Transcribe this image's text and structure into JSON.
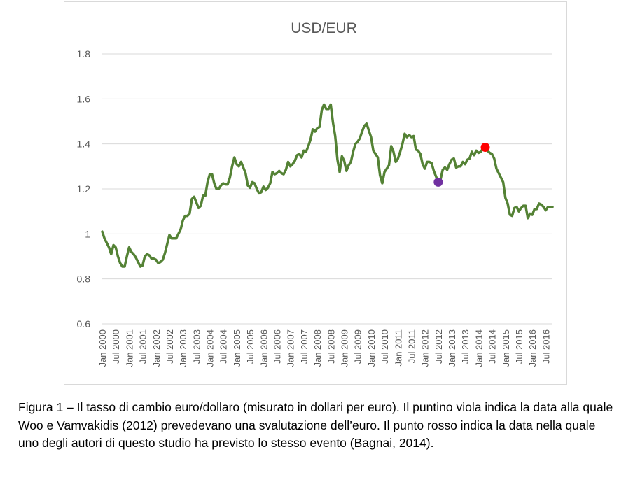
{
  "caption": "Figura 1 – Il tasso di cambio euro/dollaro (misurato in dollari per euro). Il puntino viola indica la data alla quale Woo e Vamvakidis (2012) prevedevano una svalutazione dell’euro. Il punto rosso indica la data nella quale uno degli autori di questo studio ha previsto lo stesso evento (Bagnai, 2014).",
  "chart_data": {
    "type": "line",
    "title": "USD/EUR",
    "xlabel": "",
    "ylabel": "",
    "ylim": [
      0.6,
      1.8
    ],
    "yticks": [
      0.6,
      0.8,
      1,
      1.2,
      1.4,
      1.6,
      1.8
    ],
    "ytick_labels": [
      "0.6",
      "0.8",
      "1",
      "1.2",
      "1.4",
      "1.6",
      "1.8"
    ],
    "grid": true,
    "x_start": "2000-01",
    "x_end": "2016-10",
    "xtick_labels": [
      "Jan 2000",
      "Jul 2000",
      "Jan 2001",
      "Jul 2001",
      "Jan 2002",
      "Jul 2002",
      "Jan 2003",
      "Jul 2003",
      "Jan 2004",
      "Jul 2004",
      "Jan 2005",
      "Jul 2005",
      "Jan 2006",
      "Jul 2006",
      "Jan 2007",
      "Jul 2007",
      "Jan 2008",
      "Jul 2008",
      "Jan 2009",
      "Jul 2009",
      "Jan 2010",
      "Jul 2010",
      "Jan 2011",
      "Jul 2011",
      "Jan 2012",
      "Jul 2012",
      "Jan 2013",
      "Jul 2013",
      "Jan 2014",
      "Jul 2014",
      "Jan 2015",
      "Jul 2015",
      "Jan 2016",
      "Jul 2016"
    ],
    "series": [
      {
        "name": "USD/EUR",
        "color": "#548235",
        "points": [
          [
            "2000-01",
            1.01
          ],
          [
            "2000-02",
            0.98
          ],
          [
            "2000-03",
            0.96
          ],
          [
            "2000-04",
            0.94
          ],
          [
            "2000-05",
            0.91
          ],
          [
            "2000-06",
            0.95
          ],
          [
            "2000-07",
            0.94
          ],
          [
            "2000-08",
            0.9
          ],
          [
            "2000-09",
            0.87
          ],
          [
            "2000-10",
            0.855
          ],
          [
            "2000-11",
            0.855
          ],
          [
            "2000-12",
            0.9
          ],
          [
            "2001-01",
            0.94
          ],
          [
            "2001-02",
            0.92
          ],
          [
            "2001-03",
            0.91
          ],
          [
            "2001-04",
            0.895
          ],
          [
            "2001-05",
            0.875
          ],
          [
            "2001-06",
            0.855
          ],
          [
            "2001-07",
            0.86
          ],
          [
            "2001-08",
            0.9
          ],
          [
            "2001-09",
            0.91
          ],
          [
            "2001-10",
            0.905
          ],
          [
            "2001-11",
            0.89
          ],
          [
            "2001-12",
            0.89
          ],
          [
            "2002-01",
            0.885
          ],
          [
            "2002-02",
            0.87
          ],
          [
            "2002-03",
            0.875
          ],
          [
            "2002-04",
            0.885
          ],
          [
            "2002-05",
            0.915
          ],
          [
            "2002-06",
            0.955
          ],
          [
            "2002-07",
            0.995
          ],
          [
            "2002-08",
            0.98
          ],
          [
            "2002-09",
            0.98
          ],
          [
            "2002-10",
            0.98
          ],
          [
            "2002-11",
            1.0
          ],
          [
            "2002-12",
            1.02
          ],
          [
            "2003-01",
            1.06
          ],
          [
            "2003-02",
            1.08
          ],
          [
            "2003-03",
            1.08
          ],
          [
            "2003-04",
            1.09
          ],
          [
            "2003-05",
            1.155
          ],
          [
            "2003-06",
            1.165
          ],
          [
            "2003-07",
            1.14
          ],
          [
            "2003-08",
            1.115
          ],
          [
            "2003-09",
            1.125
          ],
          [
            "2003-10",
            1.17
          ],
          [
            "2003-11",
            1.17
          ],
          [
            "2003-12",
            1.23
          ],
          [
            "2004-01",
            1.265
          ],
          [
            "2004-02",
            1.265
          ],
          [
            "2004-03",
            1.225
          ],
          [
            "2004-04",
            1.2
          ],
          [
            "2004-05",
            1.2
          ],
          [
            "2004-06",
            1.215
          ],
          [
            "2004-07",
            1.225
          ],
          [
            "2004-08",
            1.22
          ],
          [
            "2004-09",
            1.22
          ],
          [
            "2004-10",
            1.25
          ],
          [
            "2004-11",
            1.3
          ],
          [
            "2004-12",
            1.34
          ],
          [
            "2005-01",
            1.31
          ],
          [
            "2005-02",
            1.3
          ],
          [
            "2005-03",
            1.32
          ],
          [
            "2005-04",
            1.295
          ],
          [
            "2005-05",
            1.27
          ],
          [
            "2005-06",
            1.215
          ],
          [
            "2005-07",
            1.205
          ],
          [
            "2005-08",
            1.23
          ],
          [
            "2005-09",
            1.225
          ],
          [
            "2005-10",
            1.2
          ],
          [
            "2005-11",
            1.18
          ],
          [
            "2005-12",
            1.185
          ],
          [
            "2006-01",
            1.21
          ],
          [
            "2006-02",
            1.195
          ],
          [
            "2006-03",
            1.205
          ],
          [
            "2006-04",
            1.225
          ],
          [
            "2006-05",
            1.275
          ],
          [
            "2006-06",
            1.265
          ],
          [
            "2006-07",
            1.27
          ],
          [
            "2006-08",
            1.28
          ],
          [
            "2006-09",
            1.27
          ],
          [
            "2006-10",
            1.265
          ],
          [
            "2006-11",
            1.285
          ],
          [
            "2006-12",
            1.32
          ],
          [
            "2007-01",
            1.3
          ],
          [
            "2007-02",
            1.31
          ],
          [
            "2007-03",
            1.325
          ],
          [
            "2007-04",
            1.35
          ],
          [
            "2007-05",
            1.355
          ],
          [
            "2007-06",
            1.34
          ],
          [
            "2007-07",
            1.37
          ],
          [
            "2007-08",
            1.365
          ],
          [
            "2007-09",
            1.39
          ],
          [
            "2007-10",
            1.42
          ],
          [
            "2007-11",
            1.465
          ],
          [
            "2007-12",
            1.455
          ],
          [
            "2008-01",
            1.47
          ],
          [
            "2008-02",
            1.475
          ],
          [
            "2008-03",
            1.55
          ],
          [
            "2008-04",
            1.575
          ],
          [
            "2008-05",
            1.555
          ],
          [
            "2008-06",
            1.555
          ],
          [
            "2008-07",
            1.575
          ],
          [
            "2008-08",
            1.495
          ],
          [
            "2008-09",
            1.435
          ],
          [
            "2008-10",
            1.33
          ],
          [
            "2008-11",
            1.275
          ],
          [
            "2008-12",
            1.345
          ],
          [
            "2009-01",
            1.325
          ],
          [
            "2009-02",
            1.28
          ],
          [
            "2009-03",
            1.305
          ],
          [
            "2009-04",
            1.32
          ],
          [
            "2009-05",
            1.365
          ],
          [
            "2009-06",
            1.4
          ],
          [
            "2009-07",
            1.41
          ],
          [
            "2009-08",
            1.425
          ],
          [
            "2009-09",
            1.455
          ],
          [
            "2009-10",
            1.48
          ],
          [
            "2009-11",
            1.49
          ],
          [
            "2009-12",
            1.46
          ],
          [
            "2010-01",
            1.43
          ],
          [
            "2010-02",
            1.37
          ],
          [
            "2010-03",
            1.355
          ],
          [
            "2010-04",
            1.34
          ],
          [
            "2010-05",
            1.26
          ],
          [
            "2010-06",
            1.225
          ],
          [
            "2010-07",
            1.275
          ],
          [
            "2010-08",
            1.29
          ],
          [
            "2010-09",
            1.305
          ],
          [
            "2010-10",
            1.39
          ],
          [
            "2010-11",
            1.365
          ],
          [
            "2010-12",
            1.32
          ],
          [
            "2011-01",
            1.335
          ],
          [
            "2011-02",
            1.365
          ],
          [
            "2011-03",
            1.4
          ],
          [
            "2011-04",
            1.445
          ],
          [
            "2011-05",
            1.43
          ],
          [
            "2011-06",
            1.44
          ],
          [
            "2011-07",
            1.43
          ],
          [
            "2011-08",
            1.435
          ],
          [
            "2011-09",
            1.375
          ],
          [
            "2011-10",
            1.37
          ],
          [
            "2011-11",
            1.355
          ],
          [
            "2011-12",
            1.31
          ],
          [
            "2012-01",
            1.29
          ],
          [
            "2012-02",
            1.32
          ],
          [
            "2012-03",
            1.32
          ],
          [
            "2012-04",
            1.315
          ],
          [
            "2012-05",
            1.28
          ],
          [
            "2012-06",
            1.255
          ],
          [
            "2012-07",
            1.23
          ],
          [
            "2012-08",
            1.24
          ],
          [
            "2012-09",
            1.285
          ],
          [
            "2012-10",
            1.295
          ],
          [
            "2012-11",
            1.285
          ],
          [
            "2012-12",
            1.31
          ],
          [
            "2013-01",
            1.33
          ],
          [
            "2013-02",
            1.335
          ],
          [
            "2013-03",
            1.295
          ],
          [
            "2013-04",
            1.3
          ],
          [
            "2013-05",
            1.3
          ],
          [
            "2013-06",
            1.32
          ],
          [
            "2013-07",
            1.31
          ],
          [
            "2013-08",
            1.33
          ],
          [
            "2013-09",
            1.335
          ],
          [
            "2013-10",
            1.365
          ],
          [
            "2013-11",
            1.35
          ],
          [
            "2013-12",
            1.37
          ],
          [
            "2014-01",
            1.36
          ],
          [
            "2014-02",
            1.365
          ],
          [
            "2014-03",
            1.38
          ],
          [
            "2014-04",
            1.38
          ],
          [
            "2014-05",
            1.37
          ],
          [
            "2014-06",
            1.36
          ],
          [
            "2014-07",
            1.355
          ],
          [
            "2014-08",
            1.335
          ],
          [
            "2014-09",
            1.29
          ],
          [
            "2014-10",
            1.27
          ],
          [
            "2014-11",
            1.25
          ],
          [
            "2014-12",
            1.23
          ],
          [
            "2015-01",
            1.16
          ],
          [
            "2015-02",
            1.135
          ],
          [
            "2015-03",
            1.085
          ],
          [
            "2015-04",
            1.08
          ],
          [
            "2015-05",
            1.115
          ],
          [
            "2015-06",
            1.12
          ],
          [
            "2015-07",
            1.1
          ],
          [
            "2015-08",
            1.115
          ],
          [
            "2015-09",
            1.125
          ],
          [
            "2015-10",
            1.125
          ],
          [
            "2015-11",
            1.07
          ],
          [
            "2015-12",
            1.09
          ],
          [
            "2016-01",
            1.085
          ],
          [
            "2016-02",
            1.11
          ],
          [
            "2016-03",
            1.11
          ],
          [
            "2016-04",
            1.135
          ],
          [
            "2016-05",
            1.13
          ],
          [
            "2016-06",
            1.12
          ],
          [
            "2016-07",
            1.105
          ],
          [
            "2016-08",
            1.12
          ],
          [
            "2016-09",
            1.12
          ],
          [
            "2016-10",
            1.12
          ]
        ]
      }
    ],
    "markers": [
      {
        "name": "Woo e Vamvakidis (2012)",
        "x": "2012-07",
        "y": 1.23,
        "color": "#7030a0"
      },
      {
        "name": "Bagnai (2014)",
        "x": "2014-04",
        "y": 1.385,
        "color": "#ff0000"
      }
    ]
  }
}
